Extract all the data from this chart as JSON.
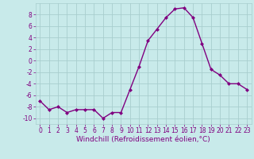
{
  "hours": [
    0,
    1,
    2,
    3,
    4,
    5,
    6,
    7,
    8,
    9,
    10,
    11,
    12,
    13,
    14,
    15,
    16,
    17,
    18,
    19,
    20,
    21,
    22,
    23
  ],
  "values": [
    -7,
    -8.5,
    -8,
    -9,
    -8.5,
    -8.5,
    -8.5,
    -10,
    -9,
    -9,
    -5,
    -1,
    3.5,
    5.5,
    7.5,
    9,
    9.2,
    7.5,
    3,
    -1.5,
    -2.5,
    -4,
    -4,
    -5
  ],
  "line_color": "#800080",
  "marker": "D",
  "marker_size": 2,
  "bg_color": "#c8eaea",
  "grid_color": "#a8cece",
  "xlabel": "Windchill (Refroidissement éolien,°C)",
  "ylim": [
    -11,
    10
  ],
  "xlim": [
    -0.5,
    23.5
  ],
  "yticks": [
    -10,
    -8,
    -6,
    -4,
    -2,
    0,
    2,
    4,
    6,
    8
  ],
  "xticks": [
    0,
    1,
    2,
    3,
    4,
    5,
    6,
    7,
    8,
    9,
    10,
    11,
    12,
    13,
    14,
    15,
    16,
    17,
    18,
    19,
    20,
    21,
    22,
    23
  ],
  "tick_color": "#800080",
  "label_color": "#800080",
  "line_width": 1.0,
  "tick_fontsize": 5.5,
  "xlabel_fontsize": 6.5
}
